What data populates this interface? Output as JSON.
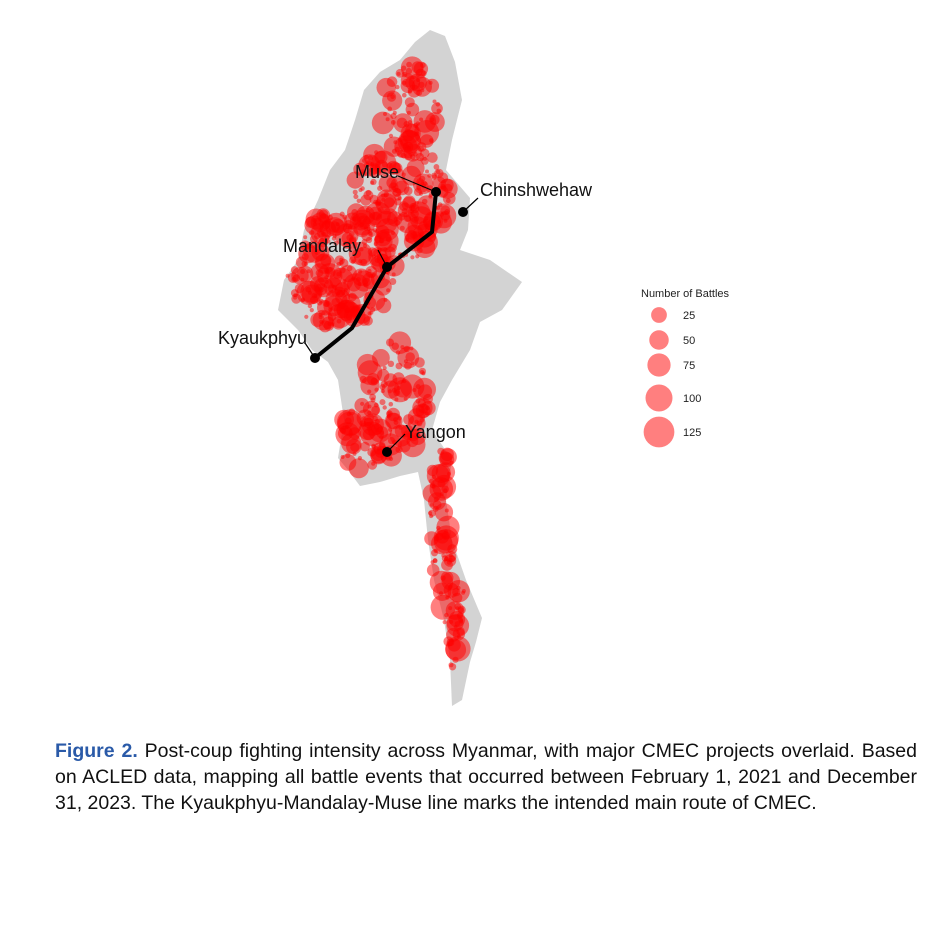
{
  "map": {
    "cities": [
      {
        "label": "Muse"
      },
      {
        "label": "Chinshwehaw"
      },
      {
        "label": "Mandalay"
      },
      {
        "label": "Kyaukphyu"
      },
      {
        "label": "Yangon"
      }
    ],
    "legend": {
      "title": "Number of Battles",
      "values": [
        25,
        50,
        75,
        100,
        125
      ]
    }
  },
  "caption": {
    "label": "Figure 2.",
    "text": "Post-coup fighting intensity across Myanmar, with major CMEC projects overlaid. Based on ACLED data, mapping all battle events that occurred between February 1, 2021 and December 31, 2023. The Kyaukphyu-Mandalay-Muse line marks the intended main route of CMEC."
  }
}
